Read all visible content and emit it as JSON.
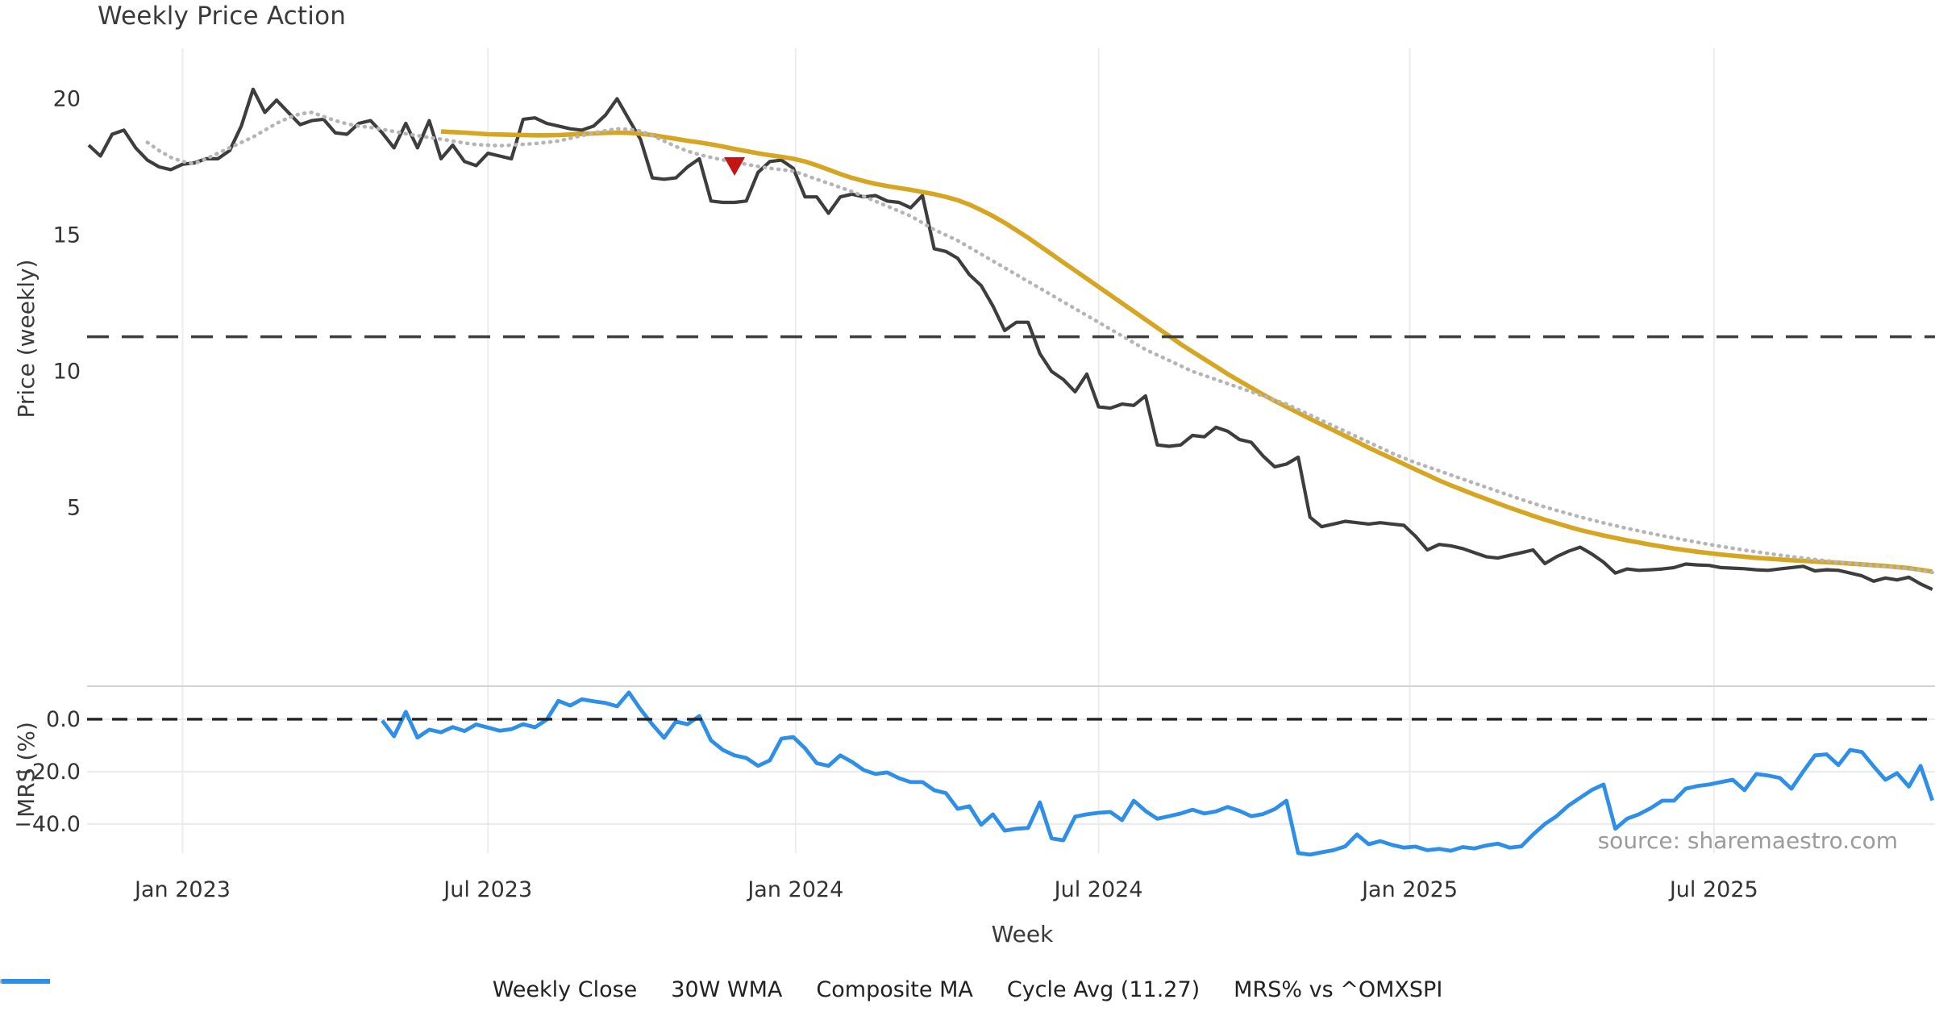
{
  "title": "Weekly Price Action",
  "source_note": "source: sharemaestro.com",
  "colors": {
    "close": "#3d3d3d",
    "wma": "#d6a622",
    "composite": "#b5b5b5",
    "cycle_avg": "#3d3d3d",
    "mrs": "#2d8fe8",
    "marker": "#c41414",
    "grid_vertical": "#ececec",
    "grid_horizontal": "#e9e9ee",
    "panel_spine": "#d2d2d7",
    "tick_text": "#333333",
    "title_text": "#3a3a3a",
    "source_text": "#9b9b9b"
  },
  "chart_data": {
    "type": "line",
    "title": "Weekly Price Action",
    "xlabel": "Week",
    "grid": "vertical-on-both-panels",
    "x_ticks": [
      {
        "week": 8,
        "label": "Jan 2023"
      },
      {
        "week": 34,
        "label": "Jul 2023"
      },
      {
        "week": 60.2,
        "label": "Jan 2024"
      },
      {
        "week": 86,
        "label": "Jul 2024"
      },
      {
        "week": 112.5,
        "label": "Jan 2025"
      },
      {
        "week": 138.4,
        "label": "Jul 2025"
      }
    ],
    "panels": [
      {
        "id": "price",
        "ylabel": "Price (weekly)",
        "ylim": [
          0.55,
          21.85
        ],
        "yticks": [
          {
            "v": 20,
            "label": "20"
          },
          {
            "v": 15,
            "label": "15"
          },
          {
            "v": 10,
            "label": "10"
          },
          {
            "v": 5,
            "label": "5"
          }
        ]
      },
      {
        "id": "mrs",
        "ylabel": "MRS (%)",
        "ylim": [
          -51.1,
          12.6
        ],
        "yticks": [
          {
            "v": 0,
            "label": "0.0"
          },
          {
            "v": -20,
            "label": "−20.0"
          },
          {
            "v": -40,
            "label": "−40.0"
          }
        ]
      }
    ],
    "series": [
      {
        "name": "Weekly Close",
        "panel": "price",
        "color": "#3d3d3d",
        "style": "solid",
        "width": 4.2,
        "start_week": 0,
        "values": [
          18.3,
          17.9,
          18.7,
          18.85,
          18.2,
          17.75,
          17.5,
          17.4,
          17.6,
          17.65,
          17.8,
          17.8,
          18.1,
          19.0,
          20.35,
          19.5,
          19.95,
          19.5,
          19.05,
          19.2,
          19.25,
          18.75,
          18.7,
          19.1,
          19.2,
          18.75,
          18.2,
          19.1,
          18.2,
          19.2,
          17.8,
          18.3,
          17.7,
          17.55,
          18.0,
          17.9,
          17.8,
          19.25,
          19.3,
          19.1,
          19.0,
          18.9,
          18.85,
          19.0,
          19.4,
          20.0,
          19.25,
          18.5,
          17.1,
          17.05,
          17.1,
          17.5,
          17.8,
          16.25,
          16.2,
          16.2,
          16.25,
          17.3,
          17.7,
          17.75,
          17.45,
          16.4,
          16.4,
          15.8,
          16.4,
          16.5,
          16.4,
          16.45,
          16.25,
          16.2,
          16.0,
          16.45,
          14.5,
          14.4,
          14.15,
          13.55,
          13.15,
          12.4,
          11.5,
          11.8,
          11.8,
          10.65,
          10.0,
          9.7,
          9.25,
          9.9,
          8.7,
          8.65,
          8.8,
          8.75,
          9.1,
          7.3,
          7.25,
          7.3,
          7.65,
          7.6,
          7.95,
          7.8,
          7.5,
          7.4,
          6.9,
          6.5,
          6.6,
          6.85,
          4.65,
          4.3,
          4.4,
          4.5,
          4.45,
          4.4,
          4.45,
          4.4,
          4.35,
          3.95,
          3.45,
          3.65,
          3.6,
          3.5,
          3.35,
          3.2,
          3.15,
          3.25,
          3.35,
          3.45,
          2.95,
          3.2,
          3.4,
          3.55,
          3.3,
          3.0,
          2.6,
          2.75,
          2.7,
          2.72,
          2.75,
          2.8,
          2.93,
          2.9,
          2.88,
          2.8,
          2.78,
          2.76,
          2.72,
          2.7,
          2.75,
          2.8,
          2.85,
          2.68,
          2.72,
          2.7,
          2.6,
          2.5,
          2.3,
          2.42,
          2.35,
          2.45,
          2.2,
          2.0
        ]
      },
      {
        "name": "30W WMA",
        "panel": "price",
        "color": "#d6a622",
        "style": "solid",
        "width": 5.6,
        "start_week": 30,
        "values": [
          18.8,
          18.78,
          18.76,
          18.73,
          18.7,
          18.69,
          18.68,
          18.67,
          18.66,
          18.66,
          18.67,
          18.69,
          18.71,
          18.73,
          18.75,
          18.76,
          18.75,
          18.72,
          18.67,
          18.6,
          18.53,
          18.46,
          18.4,
          18.33,
          18.25,
          18.16,
          18.08,
          18.0,
          17.93,
          17.87,
          17.8,
          17.7,
          17.56,
          17.4,
          17.24,
          17.1,
          16.98,
          16.88,
          16.8,
          16.73,
          16.66,
          16.58,
          16.5,
          16.4,
          16.28,
          16.12,
          15.92,
          15.7,
          15.45,
          15.18,
          14.9,
          14.6,
          14.3,
          14.0,
          13.7,
          13.4,
          13.1,
          12.8,
          12.5,
          12.2,
          11.9,
          11.6,
          11.3,
          11.0,
          10.72,
          10.45,
          10.18,
          9.9,
          9.65,
          9.4,
          9.15,
          8.92,
          8.7,
          8.48,
          8.26,
          8.05,
          7.84,
          7.63,
          7.42,
          7.2,
          7.0,
          6.8,
          6.6,
          6.4,
          6.2,
          6.0,
          5.82,
          5.65,
          5.48,
          5.32,
          5.16,
          5.0,
          4.85,
          4.7,
          4.56,
          4.43,
          4.3,
          4.18,
          4.08,
          3.98,
          3.89,
          3.8,
          3.72,
          3.64,
          3.57,
          3.5,
          3.44,
          3.38,
          3.33,
          3.28,
          3.24,
          3.2,
          3.16,
          3.13,
          3.1,
          3.07,
          3.05,
          3.02,
          3.0,
          2.98,
          2.95,
          2.92,
          2.89,
          2.86,
          2.82,
          2.78,
          2.72,
          2.65
        ]
      },
      {
        "name": "Composite MA",
        "panel": "price",
        "color": "#b5b5b5",
        "style": "dotted",
        "width": 4.6,
        "start_week": 5,
        "values": [
          18.4,
          18.1,
          17.85,
          17.7,
          17.62,
          17.8,
          18.0,
          18.2,
          18.4,
          18.6,
          18.85,
          19.1,
          19.3,
          19.45,
          19.5,
          19.35,
          19.2,
          19.08,
          19.0,
          18.95,
          18.88,
          18.8,
          18.72,
          18.65,
          18.58,
          18.52,
          18.45,
          18.38,
          18.32,
          18.3,
          18.28,
          18.3,
          18.33,
          18.36,
          18.4,
          18.45,
          18.55,
          18.65,
          18.75,
          18.83,
          18.9,
          18.88,
          18.82,
          18.65,
          18.45,
          18.25,
          18.08,
          17.95,
          17.85,
          17.76,
          17.68,
          17.6,
          17.52,
          17.45,
          17.4,
          17.35,
          17.2,
          17.05,
          16.9,
          16.75,
          16.6,
          16.42,
          16.24,
          16.06,
          15.88,
          15.7,
          15.45,
          15.2,
          15.0,
          14.8,
          14.55,
          14.3,
          14.05,
          13.8,
          13.55,
          13.3,
          13.05,
          12.8,
          12.55,
          12.3,
          12.05,
          11.8,
          11.55,
          11.3,
          11.05,
          10.8,
          10.6,
          10.4,
          10.2,
          10.0,
          9.85,
          9.7,
          9.55,
          9.4,
          9.25,
          9.1,
          8.95,
          8.8,
          8.6,
          8.4,
          8.2,
          8.0,
          7.8,
          7.6,
          7.4,
          7.2,
          7.0,
          6.82,
          6.65,
          6.5,
          6.35,
          6.2,
          6.05,
          5.9,
          5.75,
          5.6,
          5.45,
          5.3,
          5.16,
          5.03,
          4.9,
          4.78,
          4.66,
          4.55,
          4.44,
          4.34,
          4.24,
          4.15,
          4.06,
          3.97,
          3.89,
          3.81,
          3.73,
          3.65,
          3.58,
          3.51,
          3.44,
          3.38,
          3.32,
          3.26,
          3.2,
          3.15,
          3.1,
          3.05,
          3.0,
          2.96,
          2.92,
          2.88,
          2.84,
          2.8,
          2.76,
          2.7,
          2.62
        ]
      },
      {
        "name": "Cycle Avg (11.27)",
        "panel": "price",
        "color": "#3d3d3d",
        "style": "dashed",
        "width": 3.6,
        "dash": "27 16",
        "const_value": 11.27
      },
      {
        "name": "MRS% vs ^OMXSPI",
        "panel": "mrs",
        "color": "#2d8fe8",
        "style": "solid",
        "width": 4.8,
        "start_week": 25,
        "values": [
          -0.5,
          -6.5,
          2.8,
          -7.0,
          -4.0,
          -5.0,
          -3.0,
          -4.5,
          -2.0,
          -3.2,
          -4.4,
          -3.8,
          -1.9,
          -3.1,
          -0.2,
          7.0,
          5.2,
          7.6,
          6.8,
          6.2,
          4.9,
          10.2,
          3.7,
          -2.0,
          -7.1,
          -0.9,
          -1.9,
          1.2,
          -8.1,
          -11.7,
          -13.8,
          -14.8,
          -17.8,
          -15.7,
          -7.4,
          -6.8,
          -11.1,
          -16.8,
          -17.8,
          -13.8,
          -16.3,
          -19.4,
          -20.9,
          -20.3,
          -22.5,
          -24.0,
          -24.0,
          -27.1,
          -28.2,
          -34.2,
          -33.2,
          -40.3,
          -36.3,
          -42.5,
          -41.8,
          -41.5,
          -31.7,
          -45.5,
          -46.2,
          -37.2,
          -36.3,
          -35.7,
          -35.4,
          -38.5,
          -31.1,
          -35.0,
          -38.0,
          -37.0,
          -36.0,
          -34.5,
          -36.0,
          -35.2,
          -33.5,
          -35.0,
          -37.0,
          -36.2,
          -34.3,
          -31.1,
          -51.1,
          -51.7,
          -50.8,
          -50.0,
          -48.5,
          -44.0,
          -47.7,
          -46.5,
          -48.0,
          -49.0,
          -48.6,
          -50.0,
          -49.5,
          -50.2,
          -48.8,
          -49.3,
          -48.2,
          -47.5,
          -49.0,
          -48.5,
          -44.0,
          -40.0,
          -37.0,
          -33.0,
          -30.0,
          -27.0,
          -24.9,
          -41.8,
          -38.0,
          -36.3,
          -34.0,
          -31.1,
          -31.1,
          -26.5,
          -25.5,
          -24.9,
          -24.0,
          -23.1,
          -27.1,
          -20.9,
          -21.5,
          -22.4,
          -26.5,
          -20.0,
          -13.8,
          -13.4,
          -17.5,
          -11.7,
          -12.5,
          -18.0,
          -23.1,
          -20.6,
          -25.7,
          -17.8,
          -31.0
        ]
      },
      {
        "name": "MRS zero line",
        "panel": "mrs",
        "color": "#222222",
        "style": "dashed",
        "width": 3.4,
        "dash": "19 12",
        "const_value": 0,
        "in_legend": false
      }
    ],
    "markers": [
      {
        "type": "triangle-down",
        "meaning": "sell-signal",
        "color": "#c41414",
        "week": 55,
        "price": 17.5
      }
    ],
    "legend": {
      "position": "bottom-center",
      "items": [
        {
          "label": "Weekly Close",
          "color": "#3d3d3d",
          "style": "solid"
        },
        {
          "label": "30W WMA",
          "color": "#d6a622",
          "style": "solid"
        },
        {
          "label": "Composite MA",
          "color": "#b5b5b5",
          "style": "dotted"
        },
        {
          "label": "Cycle Avg (11.27)",
          "color": "#3d3d3d",
          "style": "dashed"
        },
        {
          "label": "MRS% vs ^OMXSPI",
          "color": "#2d8fe8",
          "style": "solid"
        }
      ]
    }
  }
}
